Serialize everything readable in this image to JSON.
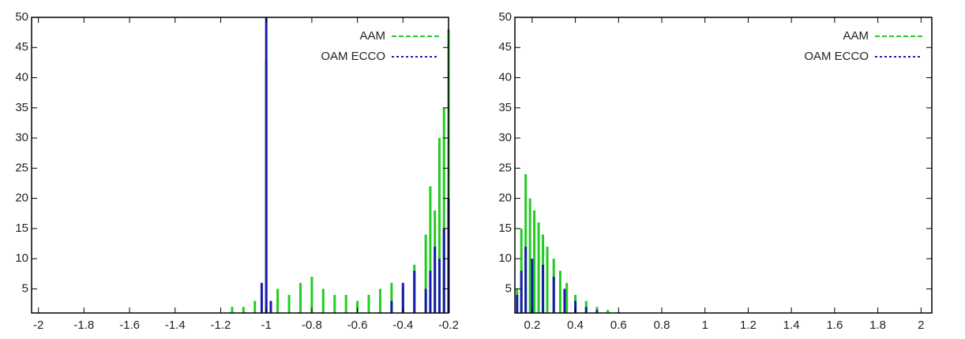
{
  "chart_data": [
    {
      "type": "bar",
      "legend": "top-right",
      "xlim": [
        -2.03,
        -0.2
      ],
      "ylim": [
        1,
        50
      ],
      "xticks": [
        -2,
        -1.8,
        -1.6,
        -1.4,
        -1.2,
        -1,
        -0.8,
        -0.6,
        -0.4,
        -0.2
      ],
      "yticks": [
        5,
        10,
        15,
        20,
        25,
        30,
        35,
        40,
        45,
        50
      ],
      "series": [
        {
          "name": "AAM",
          "color": "#22cc22",
          "x": [
            -1.15,
            -1.1,
            -1.05,
            -1.0,
            -0.95,
            -0.9,
            -0.85,
            -0.8,
            -0.75,
            -0.7,
            -0.65,
            -0.6,
            -0.55,
            -0.5,
            -0.45,
            -0.4,
            -0.35,
            -0.3,
            -0.28,
            -0.26,
            -0.24,
            -0.22,
            -0.2
          ],
          "values": [
            2,
            2,
            3,
            43,
            5,
            4,
            6,
            7,
            5,
            4,
            4,
            3,
            4,
            5,
            6,
            5,
            9,
            14,
            22,
            18,
            30,
            35,
            48
          ]
        },
        {
          "name": "OAM ECCO",
          "color": "#1a1aaa",
          "x": [
            -1.02,
            -1.0,
            -0.98,
            -0.45,
            -0.4,
            -0.35,
            -0.3,
            -0.28,
            -0.26,
            -0.24,
            -0.22,
            -0.2
          ],
          "values": [
            6,
            50,
            3,
            3,
            6,
            8,
            5,
            8,
            12,
            10,
            15,
            20
          ]
        }
      ]
    },
    {
      "type": "bar",
      "legend": "top-right",
      "xlim": [
        0.12,
        2.05
      ],
      "ylim": [
        1,
        50
      ],
      "xticks": [
        0.2,
        0.4,
        0.6,
        0.8,
        1,
        1.2,
        1.4,
        1.6,
        1.8,
        2
      ],
      "yticks": [
        5,
        10,
        15,
        20,
        25,
        30,
        35,
        40,
        45,
        50
      ],
      "series": [
        {
          "name": "AAM",
          "color": "#22cc22",
          "x": [
            0.13,
            0.15,
            0.17,
            0.19,
            0.21,
            0.23,
            0.25,
            0.27,
            0.3,
            0.33,
            0.36,
            0.4,
            0.45,
            0.5,
            0.55,
            0.6
          ],
          "values": [
            5,
            15,
            24,
            20,
            18,
            16,
            14,
            12,
            10,
            8,
            6,
            4,
            3,
            2,
            1.5,
            1.2
          ]
        },
        {
          "name": "OAM ECCO",
          "color": "#1a1aaa",
          "x": [
            0.13,
            0.15,
            0.17,
            0.2,
            0.25,
            0.3,
            0.35,
            0.4,
            0.45,
            0.5
          ],
          "values": [
            4,
            8,
            12,
            10,
            9,
            7,
            5,
            3,
            2,
            1.5
          ]
        }
      ]
    }
  ]
}
